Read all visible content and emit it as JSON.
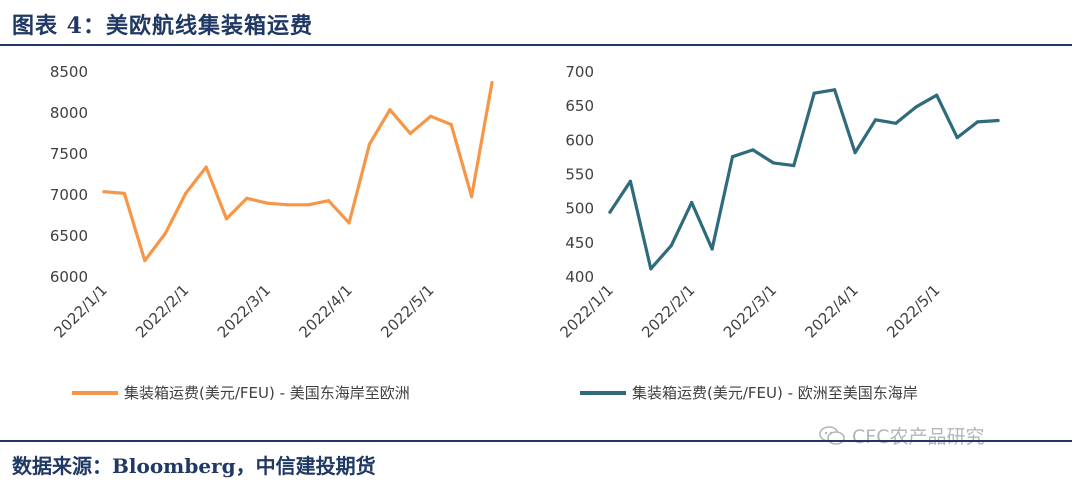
{
  "header": {
    "title": "图表 4：美欧航线集装箱运费"
  },
  "footer": {
    "source": "数据来源：Bloomberg，中信建投期货",
    "watermark": "CFC农产品研究"
  },
  "chart_data": [
    {
      "type": "line",
      "legend": "集装箱运费(美元/FEU) - 美国东海岸至欧洲",
      "color": "#f79646",
      "ylim": [
        6000,
        8500
      ],
      "yticks": [
        6000,
        6500,
        7000,
        7500,
        8000,
        8500
      ],
      "xticks": [
        "2022/1/1",
        "2022/2/1",
        "2022/3/1",
        "2022/4/1",
        "2022/5/1"
      ],
      "values": [
        7040,
        7020,
        6200,
        6530,
        7020,
        7340,
        6710,
        6960,
        6900,
        6880,
        6880,
        6930,
        6660,
        7620,
        8040,
        7750,
        7960,
        7860,
        6980,
        8370
      ]
    },
    {
      "type": "line",
      "legend": "集装箱运费(美元/FEU) - 欧洲至美国东海岸",
      "color": "#2e6b7c",
      "ylim": [
        400,
        700
      ],
      "yticks": [
        400,
        450,
        500,
        550,
        600,
        650,
        700
      ],
      "xticks": [
        "2022/1/1",
        "2022/2/1",
        "2022/3/1",
        "2022/4/1",
        "2022/5/1"
      ],
      "values": [
        495,
        540,
        412,
        446,
        509,
        441,
        576,
        586,
        567,
        563,
        669,
        674,
        582,
        630,
        625,
        649,
        666,
        604,
        627,
        629
      ]
    }
  ]
}
